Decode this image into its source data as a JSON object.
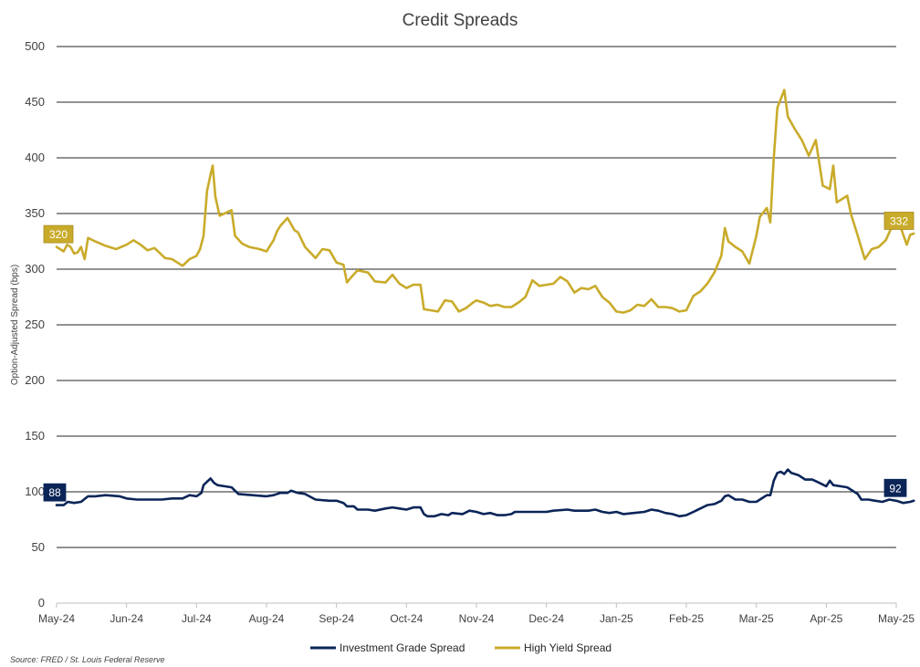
{
  "chart_data": {
    "type": "line",
    "title": "Credit Spreads",
    "ylabel": "Option-Adjusted Spread (bps)",
    "xlabel": "",
    "ylim": [
      0,
      500
    ],
    "yticks": [
      0,
      50,
      100,
      150,
      200,
      250,
      300,
      350,
      400,
      450,
      500
    ],
    "xticks": [
      "May-24",
      "Jun-24",
      "Jul-24",
      "Aug-24",
      "Sep-24",
      "Oct-24",
      "Nov-24",
      "Dec-24",
      "Jan-25",
      "Feb-25",
      "Mar-25",
      "Apr-25",
      "May-25"
    ],
    "source": "Source: FRED / St. Louis Federal Reserve",
    "series": [
      {
        "name": "Investment Grade Spread",
        "color": "#0b2558",
        "start_label": "88",
        "end_label": "92",
        "points": [
          [
            0.0,
            88
          ],
          [
            0.1,
            88
          ],
          [
            0.16,
            91
          ],
          [
            0.25,
            90
          ],
          [
            0.35,
            91
          ],
          [
            0.45,
            96
          ],
          [
            0.55,
            96
          ],
          [
            0.7,
            97
          ],
          [
            0.9,
            96
          ],
          [
            1.0,
            94
          ],
          [
            1.15,
            93
          ],
          [
            1.3,
            93
          ],
          [
            1.5,
            93
          ],
          [
            1.65,
            94
          ],
          [
            1.8,
            94
          ],
          [
            1.9,
            97
          ],
          [
            2.0,
            96
          ],
          [
            2.07,
            99
          ],
          [
            2.1,
            106
          ],
          [
            2.15,
            109
          ],
          [
            2.2,
            112
          ],
          [
            2.25,
            108
          ],
          [
            2.3,
            106
          ],
          [
            2.4,
            105
          ],
          [
            2.5,
            104
          ],
          [
            2.6,
            98
          ],
          [
            2.8,
            97
          ],
          [
            3.0,
            96
          ],
          [
            3.1,
            97
          ],
          [
            3.2,
            99
          ],
          [
            3.3,
            99
          ],
          [
            3.35,
            101
          ],
          [
            3.45,
            99
          ],
          [
            3.55,
            98
          ],
          [
            3.7,
            93
          ],
          [
            3.9,
            92
          ],
          [
            4.0,
            92
          ],
          [
            4.1,
            90
          ],
          [
            4.15,
            87
          ],
          [
            4.25,
            87
          ],
          [
            4.3,
            84
          ],
          [
            4.45,
            84
          ],
          [
            4.55,
            83
          ],
          [
            4.7,
            85
          ],
          [
            4.8,
            86
          ],
          [
            4.9,
            85
          ],
          [
            5.0,
            84
          ],
          [
            5.1,
            86
          ],
          [
            5.2,
            86
          ],
          [
            5.25,
            80
          ],
          [
            5.3,
            78
          ],
          [
            5.4,
            78
          ],
          [
            5.5,
            80
          ],
          [
            5.6,
            79
          ],
          [
            5.65,
            81
          ],
          [
            5.8,
            80
          ],
          [
            5.9,
            83
          ],
          [
            6.0,
            82
          ],
          [
            6.1,
            80
          ],
          [
            6.2,
            81
          ],
          [
            6.3,
            79
          ],
          [
            6.4,
            79
          ],
          [
            6.5,
            80
          ],
          [
            6.55,
            82
          ],
          [
            6.7,
            82
          ],
          [
            6.85,
            82
          ],
          [
            7.0,
            82
          ],
          [
            7.1,
            83
          ],
          [
            7.3,
            84
          ],
          [
            7.4,
            83
          ],
          [
            7.6,
            83
          ],
          [
            7.7,
            84
          ],
          [
            7.8,
            82
          ],
          [
            7.9,
            81
          ],
          [
            8.0,
            82
          ],
          [
            8.1,
            80
          ],
          [
            8.25,
            81
          ],
          [
            8.4,
            82
          ],
          [
            8.5,
            84
          ],
          [
            8.6,
            83
          ],
          [
            8.7,
            81
          ],
          [
            8.8,
            80
          ],
          [
            8.9,
            78
          ],
          [
            9.0,
            79
          ],
          [
            9.1,
            82
          ],
          [
            9.2,
            85
          ],
          [
            9.3,
            88
          ],
          [
            9.4,
            89
          ],
          [
            9.5,
            92
          ],
          [
            9.55,
            96
          ],
          [
            9.6,
            97
          ],
          [
            9.7,
            93
          ],
          [
            9.8,
            93
          ],
          [
            9.9,
            91
          ],
          [
            10.0,
            91
          ],
          [
            10.1,
            95
          ],
          [
            10.15,
            97
          ],
          [
            10.2,
            97
          ],
          [
            10.25,
            110
          ],
          [
            10.3,
            117
          ],
          [
            10.35,
            118
          ],
          [
            10.4,
            116
          ],
          [
            10.45,
            120
          ],
          [
            10.5,
            117
          ],
          [
            10.6,
            115
          ],
          [
            10.7,
            111
          ],
          [
            10.8,
            111
          ],
          [
            10.9,
            108
          ],
          [
            11.0,
            105
          ],
          [
            11.05,
            110
          ],
          [
            11.1,
            106
          ],
          [
            11.2,
            105
          ],
          [
            11.3,
            104
          ],
          [
            11.4,
            100
          ],
          [
            11.45,
            98
          ],
          [
            11.5,
            93
          ],
          [
            11.6,
            93
          ],
          [
            11.7,
            92
          ],
          [
            11.8,
            91
          ],
          [
            11.9,
            93
          ],
          [
            12.0,
            92
          ],
          [
            12.1,
            90
          ],
          [
            12.2,
            91
          ],
          [
            12.25,
            92
          ]
        ]
      },
      {
        "name": "High Yield Spread",
        "color": "#c9ab2b",
        "start_label": "320",
        "end_label": "332",
        "points": [
          [
            0.0,
            320
          ],
          [
            0.1,
            316
          ],
          [
            0.15,
            322
          ],
          [
            0.2,
            320
          ],
          [
            0.25,
            314
          ],
          [
            0.3,
            315
          ],
          [
            0.35,
            320
          ],
          [
            0.4,
            309
          ],
          [
            0.45,
            328
          ],
          [
            0.55,
            325
          ],
          [
            0.7,
            321
          ],
          [
            0.85,
            318
          ],
          [
            1.0,
            322
          ],
          [
            1.1,
            326
          ],
          [
            1.2,
            322
          ],
          [
            1.3,
            317
          ],
          [
            1.4,
            319
          ],
          [
            1.55,
            310
          ],
          [
            1.65,
            309
          ],
          [
            1.8,
            303
          ],
          [
            1.9,
            309
          ],
          [
            2.0,
            312
          ],
          [
            2.05,
            318
          ],
          [
            2.1,
            330
          ],
          [
            2.15,
            370
          ],
          [
            2.2,
            385
          ],
          [
            2.23,
            393
          ],
          [
            2.27,
            365
          ],
          [
            2.33,
            348
          ],
          [
            2.4,
            350
          ],
          [
            2.5,
            353
          ],
          [
            2.55,
            330
          ],
          [
            2.65,
            323
          ],
          [
            2.75,
            320
          ],
          [
            2.9,
            318
          ],
          [
            3.0,
            316
          ],
          [
            3.1,
            326
          ],
          [
            3.15,
            334
          ],
          [
            3.2,
            339
          ],
          [
            3.3,
            346
          ],
          [
            3.4,
            335
          ],
          [
            3.45,
            333
          ],
          [
            3.55,
            320
          ],
          [
            3.7,
            310
          ],
          [
            3.8,
            318
          ],
          [
            3.9,
            317
          ],
          [
            4.0,
            306
          ],
          [
            4.1,
            304
          ],
          [
            4.15,
            288
          ],
          [
            4.2,
            292
          ],
          [
            4.3,
            299
          ],
          [
            4.45,
            297
          ],
          [
            4.55,
            289
          ],
          [
            4.7,
            288
          ],
          [
            4.8,
            295
          ],
          [
            4.9,
            287
          ],
          [
            5.0,
            283
          ],
          [
            5.1,
            286
          ],
          [
            5.2,
            286
          ],
          [
            5.25,
            264
          ],
          [
            5.35,
            263
          ],
          [
            5.45,
            262
          ],
          [
            5.55,
            272
          ],
          [
            5.65,
            271
          ],
          [
            5.75,
            262
          ],
          [
            5.85,
            265
          ],
          [
            5.95,
            270
          ],
          [
            6.0,
            272
          ],
          [
            6.1,
            270
          ],
          [
            6.2,
            267
          ],
          [
            6.3,
            268
          ],
          [
            6.4,
            266
          ],
          [
            6.5,
            266
          ],
          [
            6.6,
            270
          ],
          [
            6.7,
            275
          ],
          [
            6.8,
            290
          ],
          [
            6.9,
            285
          ],
          [
            7.0,
            286
          ],
          [
            7.1,
            287
          ],
          [
            7.2,
            293
          ],
          [
            7.3,
            289
          ],
          [
            7.4,
            279
          ],
          [
            7.5,
            283
          ],
          [
            7.6,
            282
          ],
          [
            7.7,
            285
          ],
          [
            7.8,
            275
          ],
          [
            7.9,
            270
          ],
          [
            8.0,
            262
          ],
          [
            8.1,
            261
          ],
          [
            8.2,
            263
          ],
          [
            8.3,
            268
          ],
          [
            8.4,
            267
          ],
          [
            8.5,
            273
          ],
          [
            8.6,
            266
          ],
          [
            8.7,
            266
          ],
          [
            8.8,
            265
          ],
          [
            8.9,
            262
          ],
          [
            9.0,
            263
          ],
          [
            9.1,
            276
          ],
          [
            9.2,
            280
          ],
          [
            9.3,
            287
          ],
          [
            9.4,
            297
          ],
          [
            9.5,
            312
          ],
          [
            9.55,
            337
          ],
          [
            9.6,
            325
          ],
          [
            9.7,
            320
          ],
          [
            9.8,
            316
          ],
          [
            9.9,
            305
          ],
          [
            10.0,
            330
          ],
          [
            10.05,
            347
          ],
          [
            10.15,
            355
          ],
          [
            10.2,
            342
          ],
          [
            10.25,
            400
          ],
          [
            10.3,
            445
          ],
          [
            10.4,
            461
          ],
          [
            10.45,
            437
          ],
          [
            10.55,
            426
          ],
          [
            10.65,
            416
          ],
          [
            10.75,
            402
          ],
          [
            10.85,
            416
          ],
          [
            10.95,
            375
          ],
          [
            11.05,
            372
          ],
          [
            11.1,
            393
          ],
          [
            11.15,
            360
          ],
          [
            11.3,
            366
          ],
          [
            11.35,
            350
          ],
          [
            11.45,
            330
          ],
          [
            11.55,
            309
          ],
          [
            11.65,
            318
          ],
          [
            11.75,
            320
          ],
          [
            11.85,
            326
          ],
          [
            11.95,
            340
          ],
          [
            12.05,
            340
          ],
          [
            12.15,
            322
          ],
          [
            12.2,
            331
          ],
          [
            12.25,
            332
          ]
        ]
      }
    ]
  }
}
